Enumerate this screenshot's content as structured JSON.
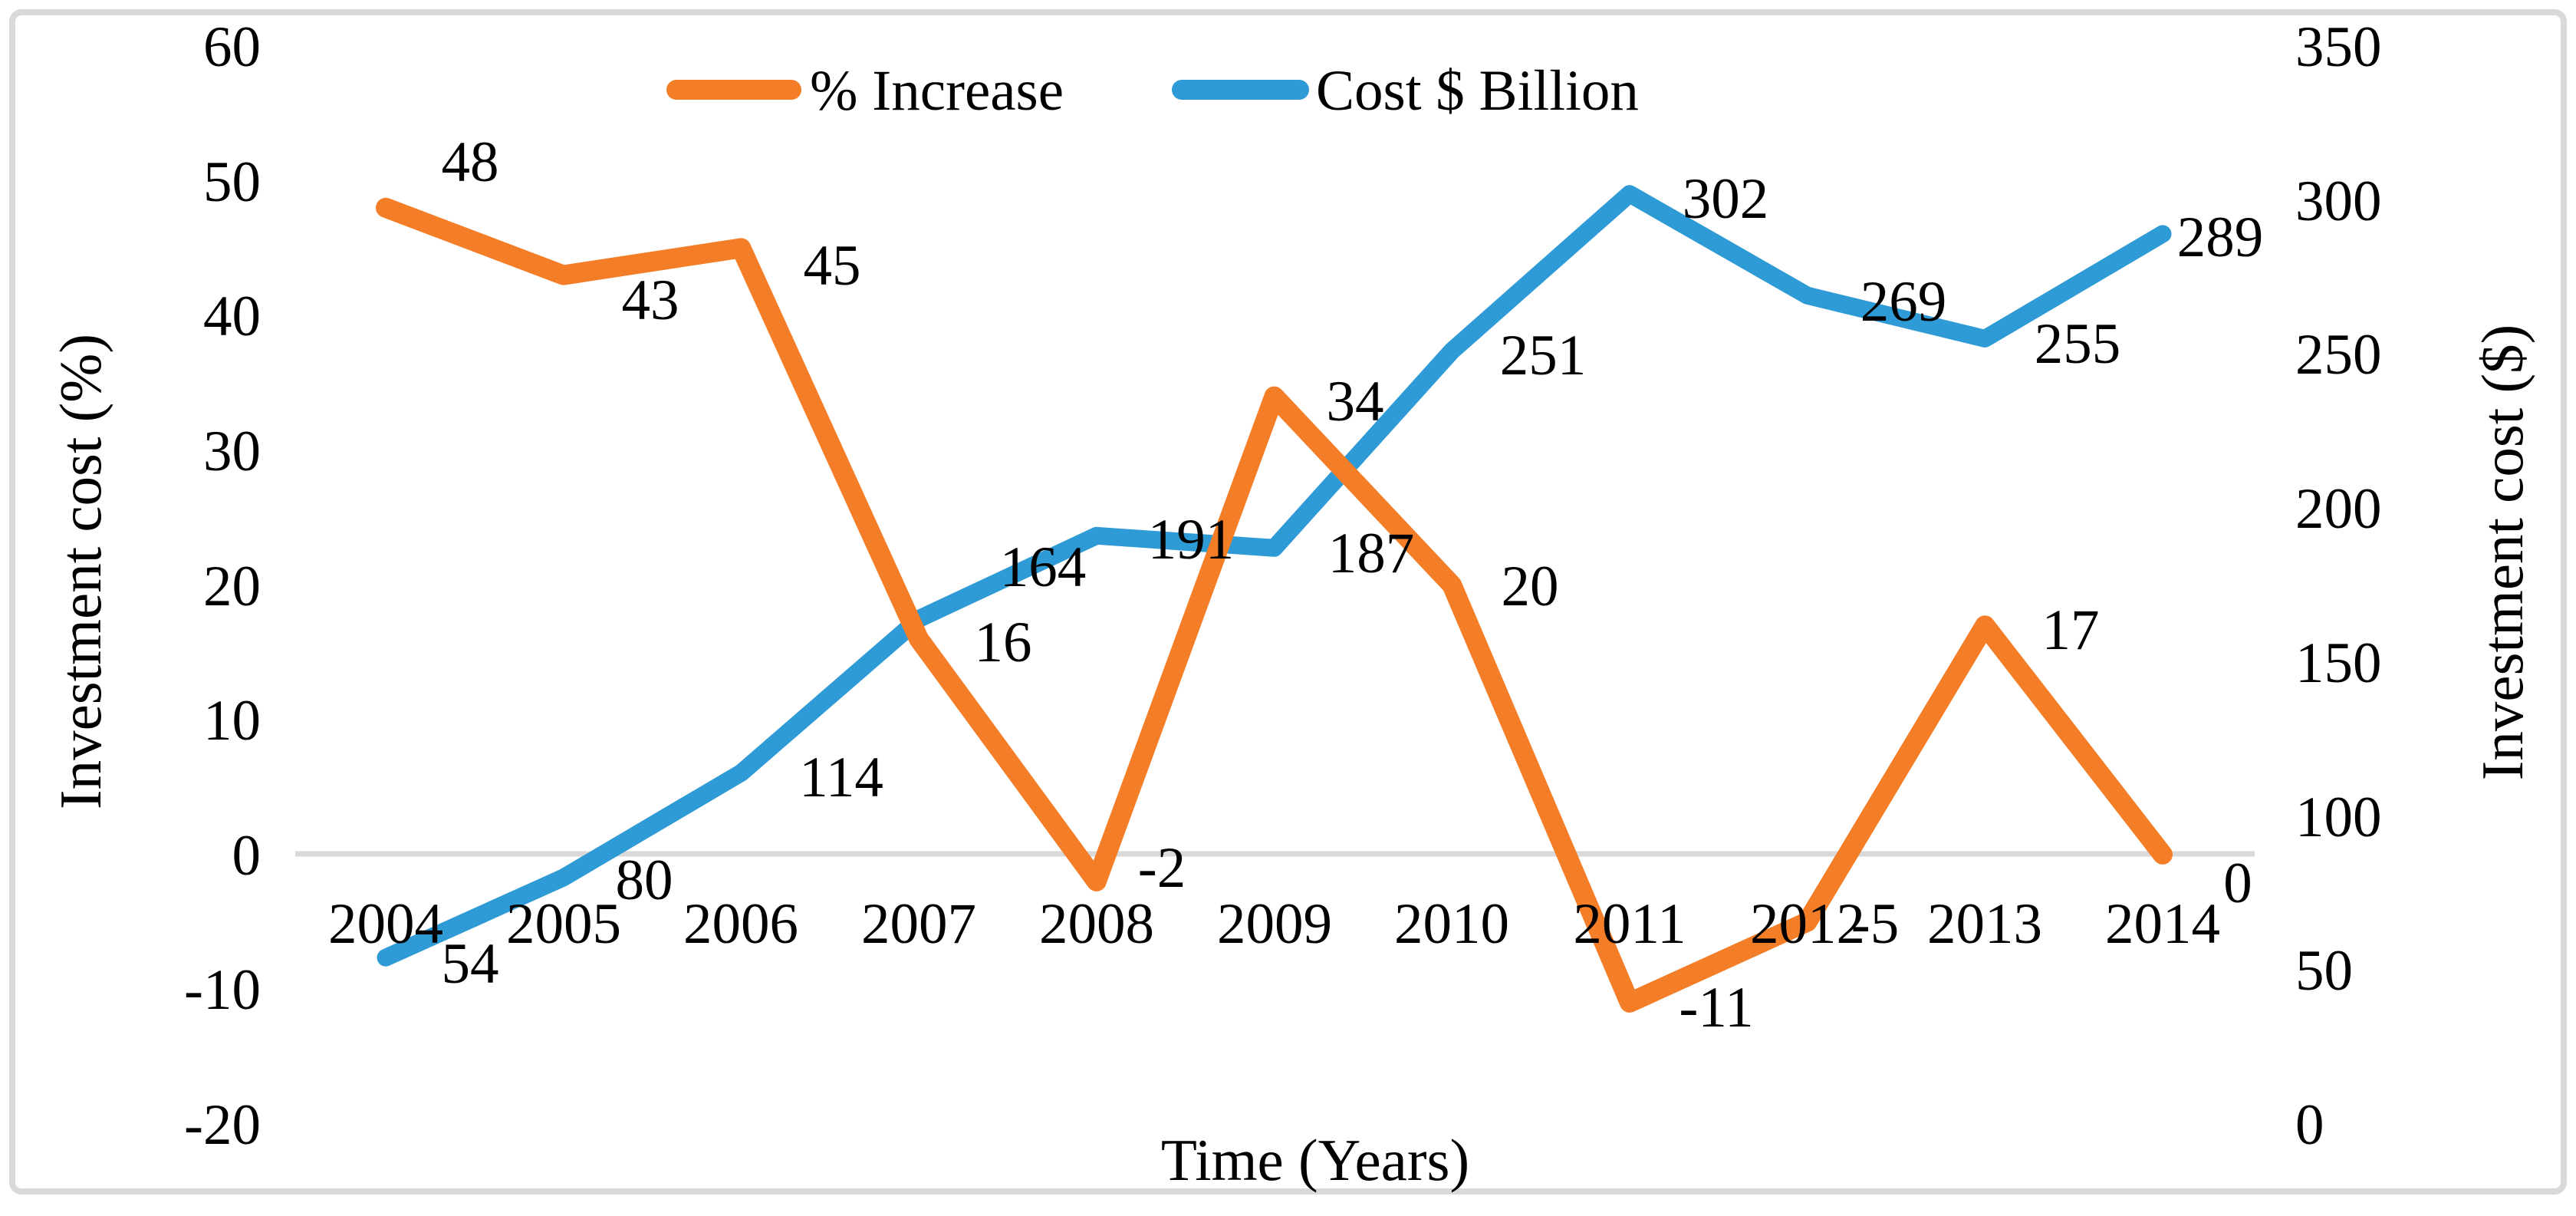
{
  "figure": {
    "background": "#FFFFFF",
    "border_color": "#D9D9D9",
    "grid_color": "#D9D9D9"
  },
  "chart_data": {
    "type": "line",
    "title": "",
    "categories": [
      "2004",
      "2005",
      "2006",
      "2007",
      "2008",
      "2009",
      "2010",
      "2011",
      "2012",
      "2013",
      "2014"
    ],
    "series": [
      {
        "name": "% Increase",
        "axis": "left",
        "color": "#F47E28",
        "values": [
          48,
          43,
          45,
          16,
          -2,
          34,
          20,
          -11,
          -5,
          17,
          0
        ]
      },
      {
        "name": "Cost $ Billion",
        "axis": "right",
        "color": "#2E9AD6",
        "values": [
          54,
          80,
          114,
          164,
          191,
          187,
          251,
          302,
          269,
          255,
          289
        ]
      }
    ],
    "left_axis": {
      "title": "Investment cost  (%)",
      "ticks": [
        60,
        50,
        40,
        30,
        20,
        10,
        0,
        -10,
        -20
      ],
      "range": [
        -20,
        60
      ]
    },
    "right_axis": {
      "title": "Investment cost ($)",
      "ticks": [
        350,
        300,
        250,
        200,
        150,
        100,
        50,
        0
      ],
      "range": [
        0,
        350
      ]
    },
    "x_axis": {
      "title": "Time (Years)"
    },
    "legend": {
      "position": "top"
    },
    "grid": "single horizontal gridline at left-axis 0",
    "data_labels": "shown"
  }
}
